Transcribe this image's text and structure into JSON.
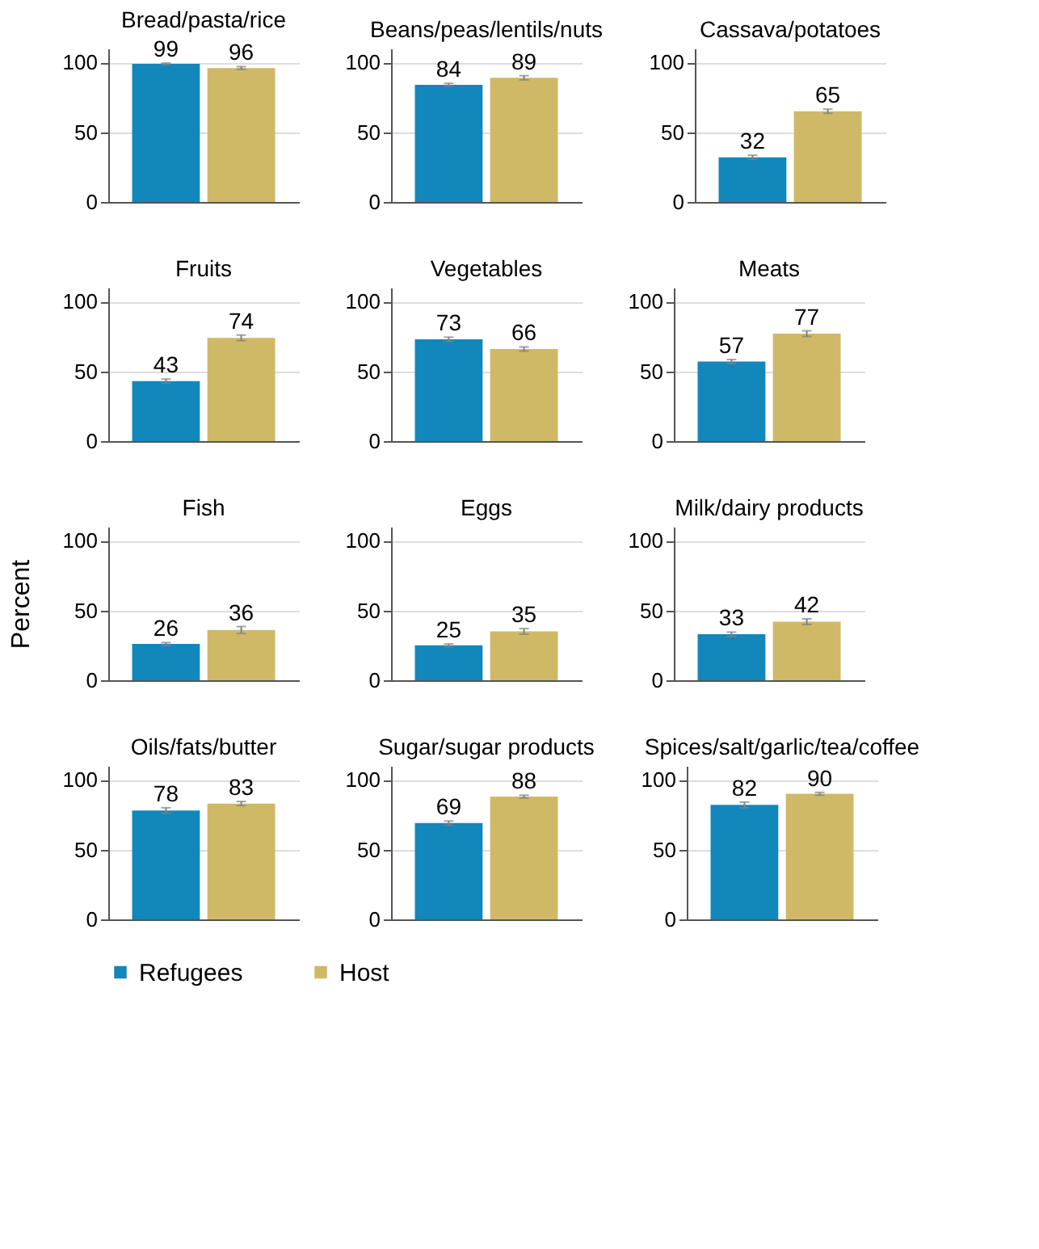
{
  "chart_data": [
    {
      "type": "bar",
      "title": "Bread/pasta/rice",
      "legend": "bottom",
      "categories": [
        null
      ],
      "ylim": [
        0,
        110
      ],
      "yticks": [
        0,
        50,
        100
      ],
      "grid": "y",
      "tick_labels": "y",
      "data_labels": true,
      "series": [
        {
          "name": "Refugees",
          "color": "#1287bb",
          "values": [
            99
          ],
          "errors": [
            0.5
          ]
        },
        {
          "name": "Host",
          "color": "#cfb966",
          "values": [
            96
          ],
          "errors": [
            1
          ]
        }
      ]
    },
    {
      "type": "bar",
      "title": "Beans/peas/lentils/nuts",
      "categories": [
        null
      ],
      "ylim": [
        0,
        110
      ],
      "yticks": [
        0,
        50,
        100
      ],
      "grid": "y",
      "tick_labels": "y",
      "data_labels": true,
      "series": [
        {
          "color": "#1287bb",
          "values": [
            84
          ],
          "errors": [
            1
          ]
        },
        {
          "color": "#cfb966",
          "values": [
            89
          ],
          "errors": [
            1.5
          ]
        }
      ]
    },
    {
      "type": "bar",
      "title": "Cassava/potatoes",
      "categories": [
        null
      ],
      "ylim": [
        0,
        110
      ],
      "yticks": [
        0,
        50,
        100
      ],
      "grid": "y",
      "tick_labels": "y",
      "data_labels": true,
      "series": [
        {
          "color": "#1287bb",
          "values": [
            32
          ],
          "errors": [
            1.5
          ]
        },
        {
          "color": "#cfb966",
          "values": [
            65
          ],
          "errors": [
            1.5
          ]
        }
      ]
    },
    {
      "type": "bar",
      "title": "Fruits",
      "categories": [
        null
      ],
      "ylim": [
        0,
        110
      ],
      "yticks": [
        0,
        50,
        100
      ],
      "grid": "y",
      "tick_labels": "y",
      "data_labels": true,
      "series": [
        {
          "color": "#1287bb",
          "values": [
            43
          ],
          "errors": [
            1.5
          ]
        },
        {
          "color": "#cfb966",
          "values": [
            74
          ],
          "errors": [
            2
          ]
        }
      ]
    },
    {
      "type": "bar",
      "title": "Vegetables",
      "categories": [
        null
      ],
      "ylim": [
        0,
        110
      ],
      "yticks": [
        0,
        50,
        100
      ],
      "grid": "y",
      "tick_labels": "y",
      "data_labels": true,
      "series": [
        {
          "color": "#1287bb",
          "values": [
            73
          ],
          "errors": [
            1.5
          ]
        },
        {
          "color": "#cfb966",
          "values": [
            66
          ],
          "errors": [
            1.5
          ]
        }
      ]
    },
    {
      "type": "bar",
      "title": "Meats",
      "categories": [
        null
      ],
      "ylim": [
        0,
        110
      ],
      "yticks": [
        0,
        50,
        100
      ],
      "grid": "y",
      "tick_labels": "y",
      "data_labels": true,
      "series": [
        {
          "color": "#1287bb",
          "values": [
            57
          ],
          "errors": [
            1.5
          ]
        },
        {
          "color": "#cfb966",
          "values": [
            77
          ],
          "errors": [
            2
          ]
        }
      ]
    },
    {
      "type": "bar",
      "title": "Fish",
      "ylabel": "Percent",
      "categories": [
        null
      ],
      "ylim": [
        0,
        110
      ],
      "yticks": [
        0,
        50,
        100
      ],
      "grid": "y",
      "tick_labels": "y",
      "data_labels": true,
      "series": [
        {
          "color": "#1287bb",
          "values": [
            26
          ],
          "errors": [
            1
          ]
        },
        {
          "color": "#cfb966",
          "values": [
            36
          ],
          "errors": [
            2.5
          ]
        }
      ]
    },
    {
      "type": "bar",
      "title": "Eggs",
      "categories": [
        null
      ],
      "ylim": [
        0,
        110
      ],
      "yticks": [
        0,
        50,
        100
      ],
      "grid": "y",
      "tick_labels": "y",
      "data_labels": true,
      "series": [
        {
          "color": "#1287bb",
          "values": [
            25
          ],
          "errors": [
            1
          ]
        },
        {
          "color": "#cfb966",
          "values": [
            35
          ],
          "errors": [
            2
          ]
        }
      ]
    },
    {
      "type": "bar",
      "title": "Milk/dairy products",
      "categories": [
        null
      ],
      "ylim": [
        0,
        110
      ],
      "yticks": [
        0,
        50,
        100
      ],
      "grid": "y",
      "tick_labels": "y",
      "data_labels": true,
      "series": [
        {
          "color": "#1287bb",
          "values": [
            33
          ],
          "errors": [
            1.5
          ]
        },
        {
          "color": "#cfb966",
          "values": [
            42
          ],
          "errors": [
            2
          ]
        }
      ]
    },
    {
      "type": "bar",
      "title": "Oils/fats/butter",
      "categories": [
        null
      ],
      "ylim": [
        0,
        110
      ],
      "yticks": [
        0,
        50,
        100
      ],
      "grid": "y",
      "tick_labels": "y",
      "data_labels": true,
      "series": [
        {
          "color": "#1287bb",
          "values": [
            78
          ],
          "errors": [
            2
          ]
        },
        {
          "color": "#cfb966",
          "values": [
            83
          ],
          "errors": [
            1.5
          ]
        }
      ]
    },
    {
      "type": "bar",
      "title": "Sugar/sugar products",
      "categories": [
        null
      ],
      "ylim": [
        0,
        110
      ],
      "yticks": [
        0,
        50,
        100
      ],
      "grid": "y",
      "tick_labels": "y",
      "data_labels": true,
      "series": [
        {
          "color": "#1287bb",
          "values": [
            69
          ],
          "errors": [
            1.5
          ]
        },
        {
          "color": "#cfb966",
          "values": [
            88
          ],
          "errors": [
            1
          ]
        }
      ]
    },
    {
      "type": "bar",
      "title": "Spices/salt/garlic/tea/coffee",
      "categories": [
        null
      ],
      "ylim": [
        0,
        110
      ],
      "yticks": [
        0,
        50,
        100
      ],
      "grid": "y",
      "tick_labels": "y",
      "data_labels": true,
      "series": [
        {
          "color": "#1287bb",
          "values": [
            82
          ],
          "errors": [
            2
          ]
        },
        {
          "color": "#cfb966",
          "values": [
            90
          ],
          "errors": [
            1
          ]
        }
      ]
    }
  ]
}
